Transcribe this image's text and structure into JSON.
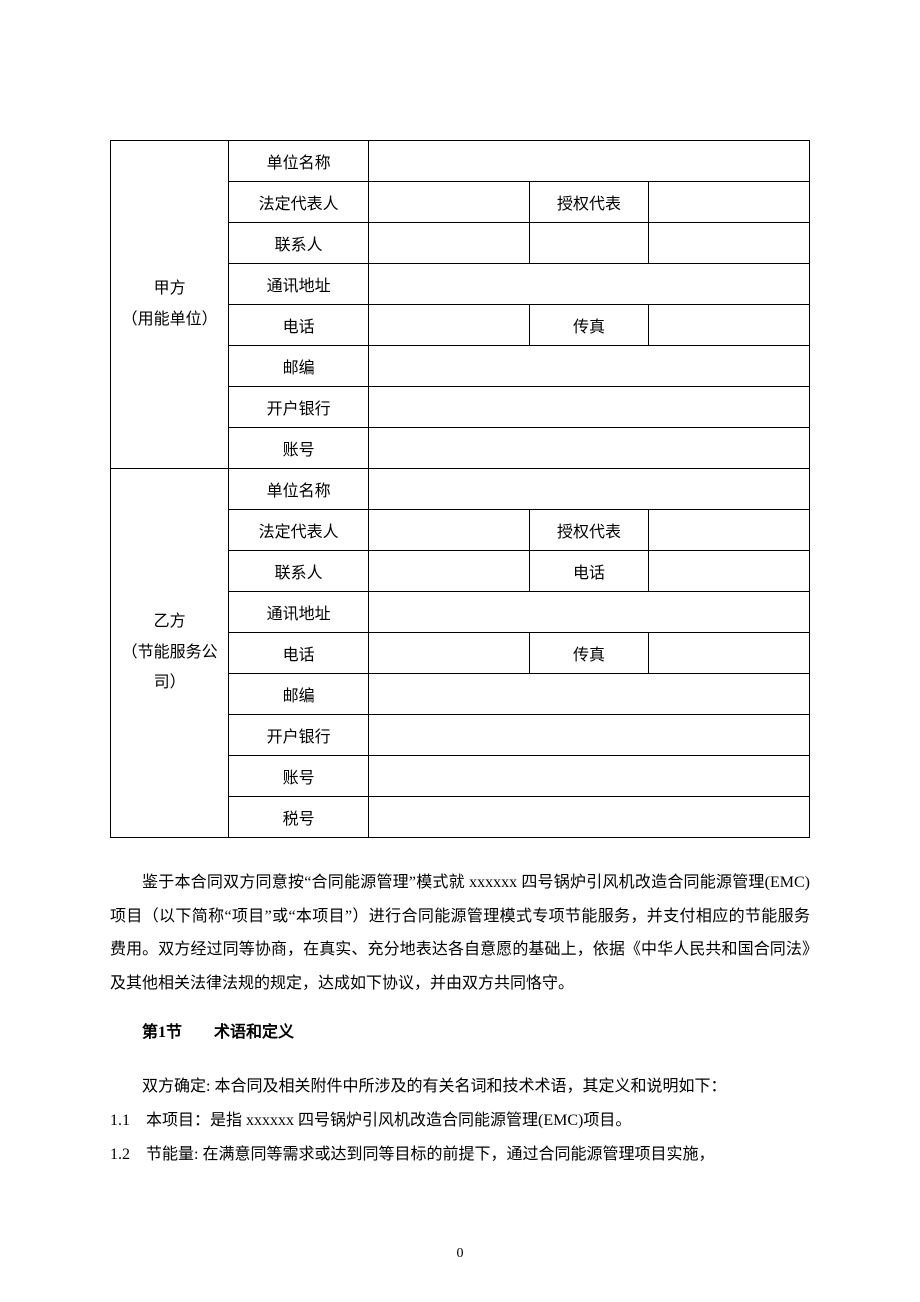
{
  "parties": {
    "a": {
      "header": "甲方\n（用能单位）",
      "rows": [
        {
          "label": "单位名称",
          "mid": null,
          "v1": "",
          "v2": ""
        },
        {
          "label": "法定代表人",
          "mid": "授权代表",
          "v1": "",
          "v2": ""
        },
        {
          "label": "联系人",
          "mid": "",
          "v1": "",
          "v2": ""
        },
        {
          "label": "通讯地址",
          "mid": null,
          "v1": "",
          "v2": ""
        },
        {
          "label": "电话",
          "mid": "传真",
          "v1": "",
          "v2": ""
        },
        {
          "label": "邮编",
          "mid": null,
          "v1": "",
          "v2": ""
        },
        {
          "label": "开户银行",
          "mid": null,
          "v1": "",
          "v2": ""
        },
        {
          "label": "账号",
          "mid": null,
          "v1": "",
          "v2": ""
        }
      ]
    },
    "b": {
      "header": "乙方\n（节能服务公司）",
      "rows": [
        {
          "label": "单位名称",
          "mid": null,
          "v1": "",
          "v2": ""
        },
        {
          "label": "法定代表人",
          "mid": "授权代表",
          "v1": "",
          "v2": ""
        },
        {
          "label": "联系人",
          "mid": "电话",
          "v1": "",
          "v2": ""
        },
        {
          "label": "通讯地址",
          "mid": null,
          "v1": "",
          "v2": ""
        },
        {
          "label": "电话",
          "mid": "传真",
          "v1": "",
          "v2": ""
        },
        {
          "label": "邮编",
          "mid": null,
          "v1": "",
          "v2": ""
        },
        {
          "label": "开户银行",
          "mid": null,
          "v1": "",
          "v2": ""
        },
        {
          "label": "账号",
          "mid": null,
          "v1": "",
          "v2": ""
        },
        {
          "label": "税号",
          "mid": null,
          "v1": "",
          "v2": ""
        }
      ]
    }
  },
  "preamble": "鉴于本合同双方同意按“合同能源管理”模式就 xxxxxx 四号锅炉引风机改造合同能源管理(EMC)项目（以下简称“项目”或“本项目”）进行合同能源管理模式专项节能服务，并支付相应的节能服务费用。双方经过同等协商，在真实、充分地表达各自意愿的基础上，依据《中华人民共和国合同法》及其他相关法律法规的规定，达成如下协议，并由双方共同恪守。",
  "section1": {
    "number": "第1节",
    "title": "术语和定义",
    "intro": "双方确定: 本合同及相关附件中所涉及的有关名词和技术术语，其定义和说明如下：",
    "items": [
      "1.1　本项目：是指 xxxxxx 四号锅炉引风机改造合同能源管理(EMC)项目。",
      "1.2　节能量: 在满意同等需求或达到同等目标的前提下，通过合同能源管理项目实施，"
    ]
  },
  "pageNumber": "0"
}
